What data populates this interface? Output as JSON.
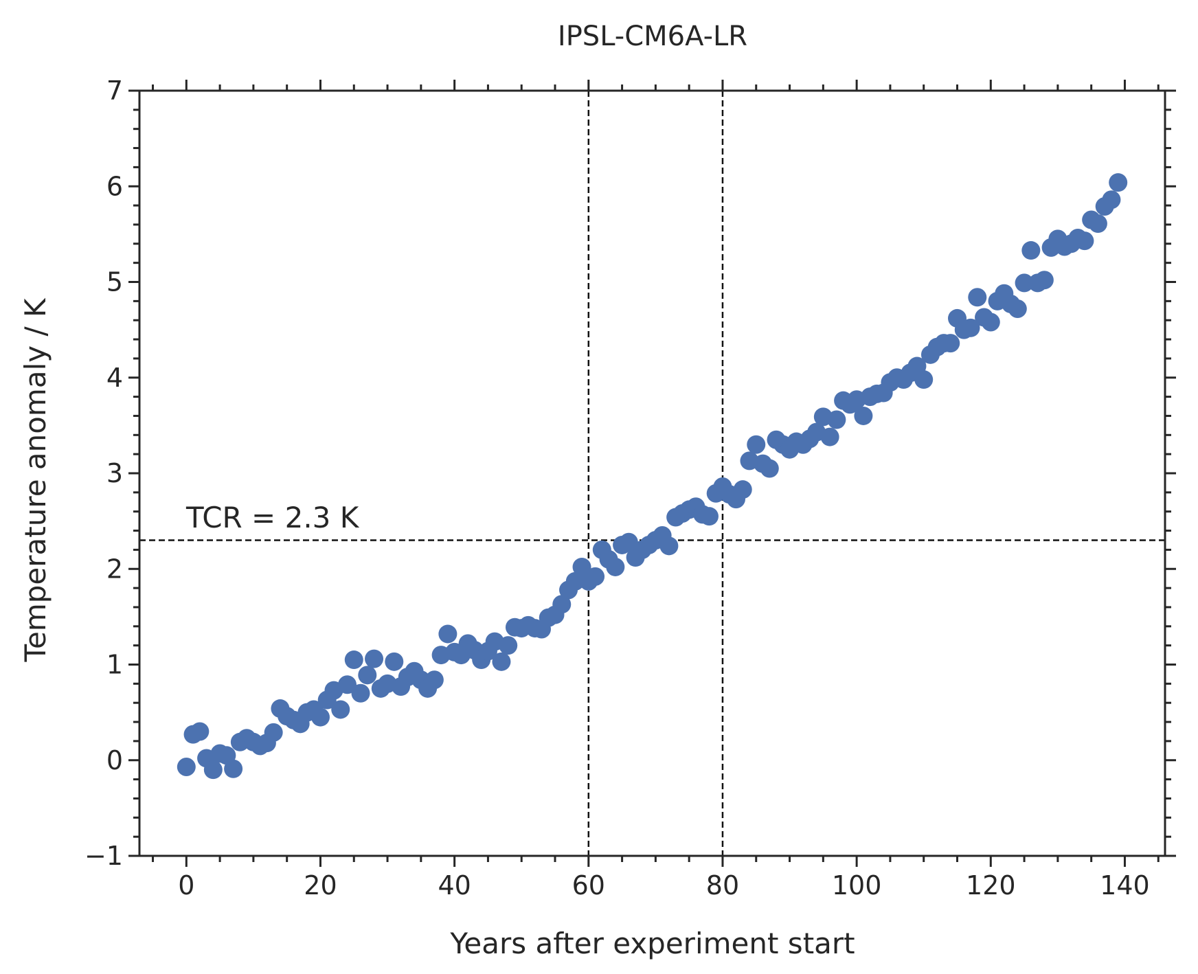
{
  "chart_data": {
    "type": "scatter",
    "title": "IPSL-CM6A-LR",
    "xlabel": "Years after experiment start",
    "ylabel": "Temperature anomaly / K",
    "xlim": [
      -7,
      146
    ],
    "ylim": [
      -1,
      7
    ],
    "x_ticks": [
      0,
      20,
      40,
      60,
      80,
      100,
      120,
      140
    ],
    "x_tick_labels": [
      "0",
      "20",
      "40",
      "60",
      "80",
      "100",
      "120",
      "140"
    ],
    "y_ticks": [
      -1,
      0,
      1,
      2,
      3,
      4,
      5,
      6,
      7
    ],
    "y_tick_labels": [
      "−1",
      "0",
      "1",
      "2",
      "3",
      "4",
      "5",
      "6",
      "7"
    ],
    "grid": false,
    "marker_color": "#4c72b0",
    "reference_lines": {
      "vertical_x": [
        60,
        80
      ],
      "horizontal_y": 2.3
    },
    "annotation": "TCR = 2.3 K",
    "series": [
      {
        "x": [
          0,
          1,
          2,
          3,
          4,
          5,
          6,
          7,
          8,
          9,
          10,
          11,
          12,
          13,
          14,
          15,
          16,
          17,
          18,
          19,
          20,
          21,
          22,
          23,
          24,
          25,
          26,
          27,
          28,
          29,
          30,
          31,
          32,
          33,
          34,
          35,
          36,
          37,
          38,
          39,
          40,
          41,
          42,
          43,
          44,
          45,
          46,
          47,
          48,
          49,
          50,
          51,
          52,
          53,
          54,
          55,
          56,
          57,
          58,
          59,
          60,
          61,
          62,
          63,
          64,
          65,
          66,
          67,
          68,
          69,
          70,
          71,
          72,
          73,
          74,
          75,
          76,
          77,
          78,
          79,
          80,
          81,
          82,
          83,
          84,
          85,
          86,
          87,
          88,
          89,
          90,
          91,
          92,
          93,
          94,
          95,
          96,
          97,
          98,
          99,
          100,
          101,
          102,
          103,
          104,
          105,
          106,
          107,
          108,
          109,
          110,
          111,
          112,
          113,
          114,
          115,
          116,
          117,
          118,
          119,
          120,
          121,
          122,
          123,
          124,
          125,
          126,
          127,
          128,
          129,
          130,
          131,
          132,
          133,
          134,
          135,
          136,
          137,
          138,
          139
        ],
        "y": [
          -0.07,
          0.27,
          0.3,
          0.02,
          -0.1,
          0.07,
          0.05,
          -0.09,
          0.19,
          0.23,
          0.19,
          0.15,
          0.18,
          0.29,
          0.54,
          0.46,
          0.42,
          0.38,
          0.5,
          0.53,
          0.45,
          0.63,
          0.73,
          0.53,
          0.79,
          1.05,
          0.7,
          0.89,
          1.06,
          0.75,
          0.8,
          1.03,
          0.77,
          0.87,
          0.93,
          0.84,
          0.75,
          0.84,
          1.1,
          1.32,
          1.13,
          1.1,
          1.22,
          1.15,
          1.05,
          1.14,
          1.24,
          1.03,
          1.2,
          1.39,
          1.38,
          1.41,
          1.38,
          1.37,
          1.49,
          1.52,
          1.63,
          1.78,
          1.87,
          2.02,
          1.87,
          1.92,
          2.2,
          2.1,
          2.02,
          2.25,
          2.28,
          2.12,
          2.2,
          2.25,
          2.3,
          2.35,
          2.24,
          2.54,
          2.58,
          2.62,
          2.65,
          2.57,
          2.55,
          2.79,
          2.86,
          2.78,
          2.73,
          2.83,
          3.13,
          3.3,
          3.1,
          3.05,
          3.35,
          3.3,
          3.25,
          3.33,
          3.3,
          3.36,
          3.43,
          3.59,
          3.38,
          3.56,
          3.76,
          3.72,
          3.77,
          3.6,
          3.8,
          3.83,
          3.84,
          3.95,
          4.0,
          3.98,
          4.05,
          4.12,
          3.98,
          4.24,
          4.32,
          4.36,
          4.36,
          4.62,
          4.5,
          4.52,
          4.84,
          4.63,
          4.58,
          4.8,
          4.88,
          4.77,
          4.72,
          4.99,
          5.33,
          4.99,
          5.02,
          5.36,
          5.45,
          5.37,
          5.4,
          5.46,
          5.43,
          5.65,
          5.61,
          5.79,
          5.86,
          6.04
        ]
      }
    ]
  }
}
